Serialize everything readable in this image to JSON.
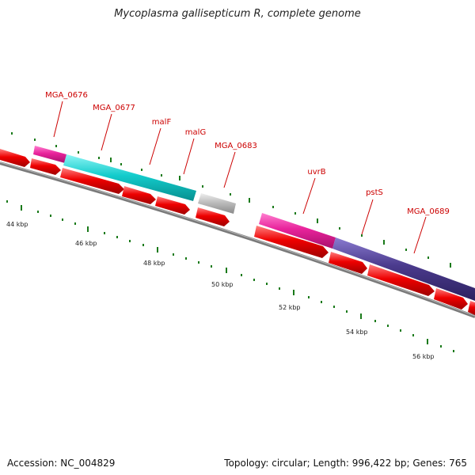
{
  "title": "Mycoplasma gallisepticum R, complete genome",
  "footer": {
    "accession": "Accession: NC_004829",
    "summary": "Topology: circular; Length: 996,422 bp; Genes: 765"
  },
  "kbp_labels": [
    "44 kbp",
    "46 kbp",
    "48 kbp",
    "50 kbp",
    "52 kbp",
    "54 kbp",
    "56 kbp"
  ],
  "gene_labels": [
    "MGA_0676",
    "MGA_0677",
    "malF",
    "malG",
    "MGA_0683",
    "uvrB",
    "pstS",
    "MGA_0689"
  ],
  "colors": {
    "magenta": "#e8239b",
    "cyan": "#13cccc",
    "gray": "#bdbdbd",
    "purple": "#4a3a8c",
    "red": "#ee0000",
    "tick": "#1a7a1a",
    "backbone": "#7a7a7a",
    "label": "#cc0000"
  }
}
